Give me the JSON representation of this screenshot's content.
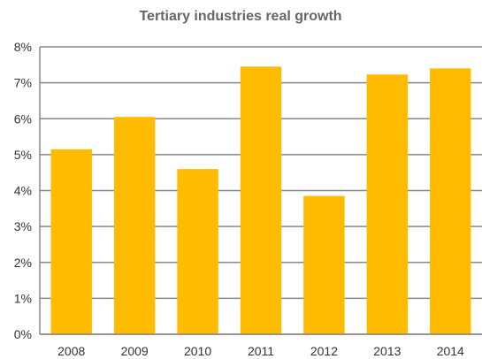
{
  "chart_data": {
    "type": "bar",
    "title": "Tertiary industries real growth",
    "xlabel": "",
    "ylabel": "",
    "categories": [
      "2008",
      "2009",
      "2010",
      "2011",
      "2012",
      "2013",
      "2014"
    ],
    "series": [
      {
        "values": [
          5.15,
          6.05,
          4.6,
          7.45,
          3.85,
          7.23,
          7.4
        ]
      }
    ],
    "ylim": [
      0,
      8
    ],
    "y_ticks": [
      0,
      1,
      2,
      3,
      4,
      5,
      6,
      7,
      8
    ],
    "y_tick_labels": [
      "0%",
      "1%",
      "2%",
      "3%",
      "4%",
      "5%",
      "6%",
      "7%",
      "8%"
    ],
    "grid": true,
    "legend": "none",
    "colors": {
      "bar": "#FFBB00",
      "grid": "#888888",
      "title": "#666666",
      "tick": "#333333"
    }
  }
}
